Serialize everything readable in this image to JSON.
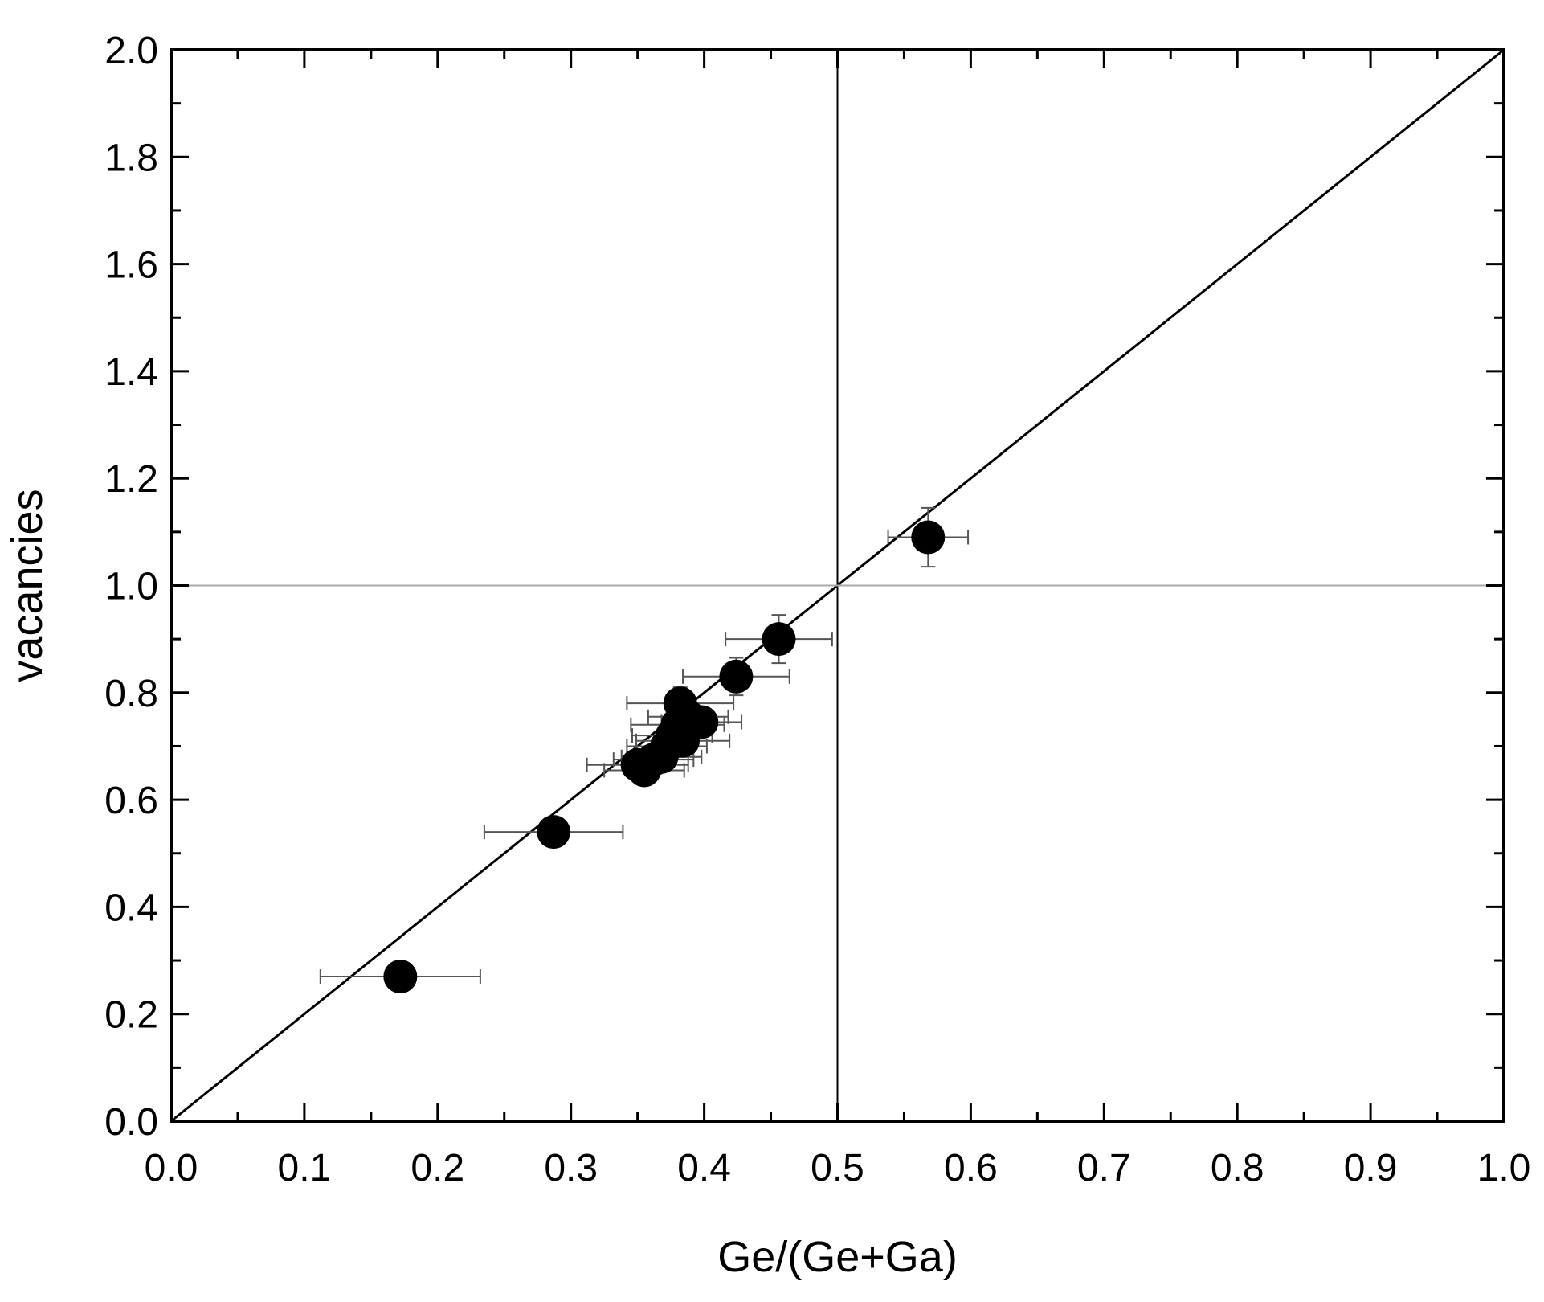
{
  "chart_data": {
    "type": "scatter",
    "xlabel": "Ge/(Ge+Ga)",
    "ylabel": "vacancies",
    "xlim": [
      0.0,
      1.0
    ],
    "ylim": [
      0.0,
      2.0
    ],
    "x_ticks": [
      "0.0",
      "0.1",
      "0.2",
      "0.3",
      "0.4",
      "0.5",
      "0.6",
      "0.7",
      "0.8",
      "0.9",
      "1.0"
    ],
    "y_ticks": [
      "0.0",
      "0.2",
      "0.4",
      "0.6",
      "0.8",
      "1.0",
      "1.2",
      "1.4",
      "1.6",
      "1.8",
      "2.0"
    ],
    "grid": false,
    "reference_lines": {
      "diagonal": {
        "from": [
          0,
          0
        ],
        "to": [
          1,
          2
        ]
      },
      "vertical_x": 0.5,
      "horizontal_y": 1.0
    },
    "colors": {
      "points": "#000000",
      "error_bars": "#555555",
      "reference_horizontal": "#aaaaaa"
    },
    "points": [
      {
        "x": 0.172,
        "y": 0.27,
        "xerr": 0.06,
        "yerr": 0.02
      },
      {
        "x": 0.287,
        "y": 0.54,
        "xerr": 0.052,
        "yerr": 0.02
      },
      {
        "x": 0.35,
        "y": 0.665,
        "xerr": 0.038,
        "yerr": 0.02
      },
      {
        "x": 0.355,
        "y": 0.655,
        "xerr": 0.03,
        "yerr": 0.02
      },
      {
        "x": 0.362,
        "y": 0.675,
        "xerr": 0.03,
        "yerr": 0.02
      },
      {
        "x": 0.368,
        "y": 0.68,
        "xerr": 0.03,
        "yerr": 0.025
      },
      {
        "x": 0.372,
        "y": 0.7,
        "xerr": 0.03,
        "yerr": 0.025
      },
      {
        "x": 0.376,
        "y": 0.72,
        "xerr": 0.03,
        "yerr": 0.025
      },
      {
        "x": 0.38,
        "y": 0.74,
        "xerr": 0.035,
        "yerr": 0.025
      },
      {
        "x": 0.384,
        "y": 0.71,
        "xerr": 0.035,
        "yerr": 0.025
      },
      {
        "x": 0.382,
        "y": 0.78,
        "xerr": 0.04,
        "yerr": 0.03
      },
      {
        "x": 0.388,
        "y": 0.755,
        "xerr": 0.03,
        "yerr": 0.025
      },
      {
        "x": 0.398,
        "y": 0.745,
        "xerr": 0.03,
        "yerr": 0.025
      },
      {
        "x": 0.424,
        "y": 0.83,
        "xerr": 0.04,
        "yerr": 0.035
      },
      {
        "x": 0.456,
        "y": 0.9,
        "xerr": 0.04,
        "yerr": 0.045
      },
      {
        "x": 0.568,
        "y": 1.09,
        "xerr": 0.03,
        "yerr": 0.055
      }
    ]
  }
}
